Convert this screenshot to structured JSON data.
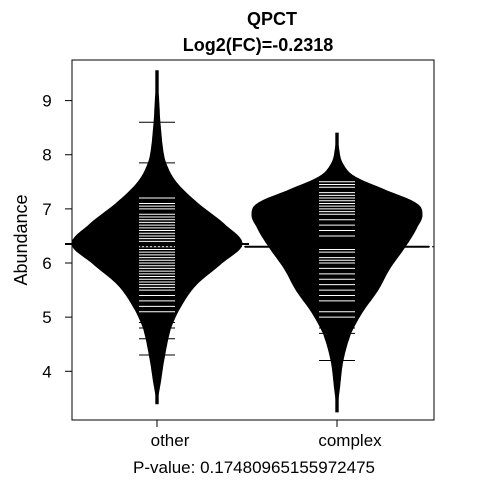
{
  "chart_data": {
    "type": "beanplot",
    "title": "QPCT",
    "subtitle": "Log2(FC)=-0.2318",
    "ylabel": "Abundance",
    "xlabel": "P-value: 0.17480965155972475",
    "ylim": [
      3.1,
      9.75
    ],
    "yticks": [
      4,
      5,
      6,
      7,
      8,
      9
    ],
    "overall_mean": 6.3,
    "categories": [
      "other",
      "complex"
    ],
    "beans": [
      {
        "label": "other",
        "mean": 6.35,
        "range": [
          3.4,
          9.55
        ],
        "density": [
          [
            3.4,
            0.0
          ],
          [
            3.8,
            0.04
          ],
          [
            4.3,
            0.09
          ],
          [
            4.8,
            0.16
          ],
          [
            5.2,
            0.28
          ],
          [
            5.6,
            0.46
          ],
          [
            6.0,
            0.76
          ],
          [
            6.35,
            1.0
          ],
          [
            6.7,
            0.8
          ],
          [
            7.1,
            0.48
          ],
          [
            7.5,
            0.22
          ],
          [
            7.9,
            0.09
          ],
          [
            8.5,
            0.04
          ],
          [
            9.0,
            0.02
          ],
          [
            9.55,
            0.0
          ]
        ],
        "points": [
          4.3,
          4.6,
          4.8,
          4.9,
          5.0,
          5.1,
          5.2,
          5.3,
          5.4,
          5.5,
          5.55,
          5.6,
          5.65,
          5.7,
          5.75,
          5.8,
          5.85,
          5.9,
          5.95,
          6.0,
          6.05,
          6.1,
          6.15,
          6.2,
          6.25,
          6.3,
          6.35,
          6.4,
          6.45,
          6.5,
          6.55,
          6.6,
          6.65,
          6.7,
          6.75,
          6.8,
          6.85,
          6.9,
          7.0,
          7.05,
          7.1,
          7.2,
          7.85,
          8.6
        ]
      },
      {
        "label": "complex",
        "mean": 6.3,
        "range": [
          3.25,
          8.4
        ],
        "density": [
          [
            3.25,
            0.0
          ],
          [
            3.7,
            0.03
          ],
          [
            4.2,
            0.07
          ],
          [
            4.7,
            0.16
          ],
          [
            5.1,
            0.3
          ],
          [
            5.5,
            0.48
          ],
          [
            5.9,
            0.62
          ],
          [
            6.3,
            0.8
          ],
          [
            6.7,
            0.95
          ],
          [
            6.9,
            1.0
          ],
          [
            7.1,
            0.93
          ],
          [
            7.35,
            0.56
          ],
          [
            7.6,
            0.2
          ],
          [
            7.85,
            0.06
          ],
          [
            8.1,
            0.02
          ],
          [
            8.4,
            0.0
          ]
        ],
        "points": [
          4.2,
          4.7,
          4.8,
          5.0,
          5.1,
          5.3,
          5.4,
          5.5,
          5.6,
          5.7,
          5.8,
          5.9,
          6.0,
          6.05,
          6.1,
          6.2,
          6.25,
          6.5,
          6.6,
          6.7,
          6.8,
          6.9,
          6.95,
          7.0,
          7.05,
          7.1,
          7.15,
          7.2,
          7.25,
          7.3,
          7.4,
          7.45,
          7.5
        ]
      }
    ]
  }
}
